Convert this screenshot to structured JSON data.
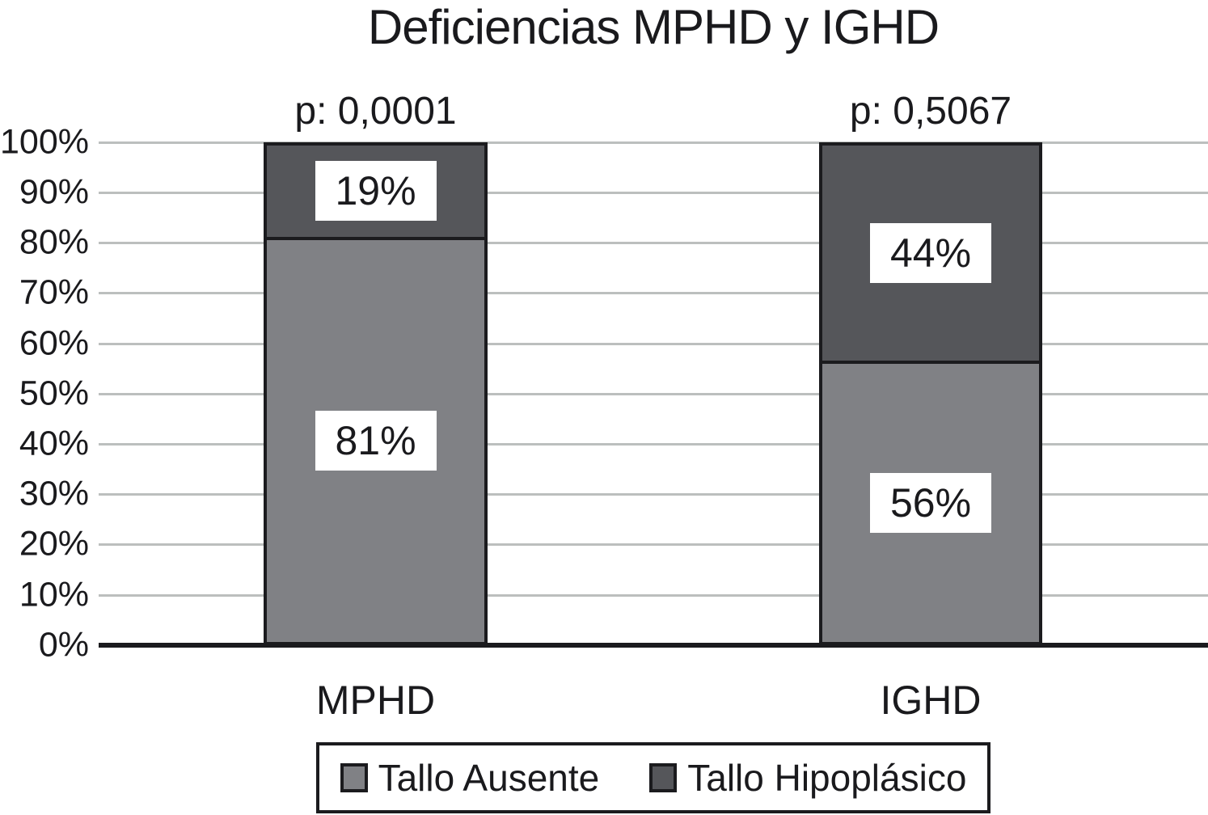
{
  "chart_data": {
    "type": "bar",
    "variant": "stacked-100-percent",
    "title": "Deficiencias MPHD y IGHD",
    "categories": [
      "MPHD",
      "IGHD"
    ],
    "series": [
      {
        "name": "Tallo Ausente",
        "color": "#808185",
        "values": [
          81,
          56
        ],
        "labels": [
          "81%",
          "56%"
        ]
      },
      {
        "name": "Tallo Hipoplásico",
        "color": "#55565a",
        "values": [
          19,
          44
        ],
        "labels": [
          "19%",
          "44%"
        ]
      }
    ],
    "p_values": [
      "p: 0,0001",
      "p: 0,5067"
    ],
    "yticks": [
      "100%",
      "90%",
      "80%",
      "70%",
      "60%",
      "50%",
      "40%",
      "30%",
      "20%",
      "10%",
      "0%"
    ],
    "ylim": [
      0,
      100
    ],
    "grid": true,
    "gridline_color": "#bcbfbe",
    "axis_color": "#1b1b1e",
    "legend_position": "bottom"
  }
}
